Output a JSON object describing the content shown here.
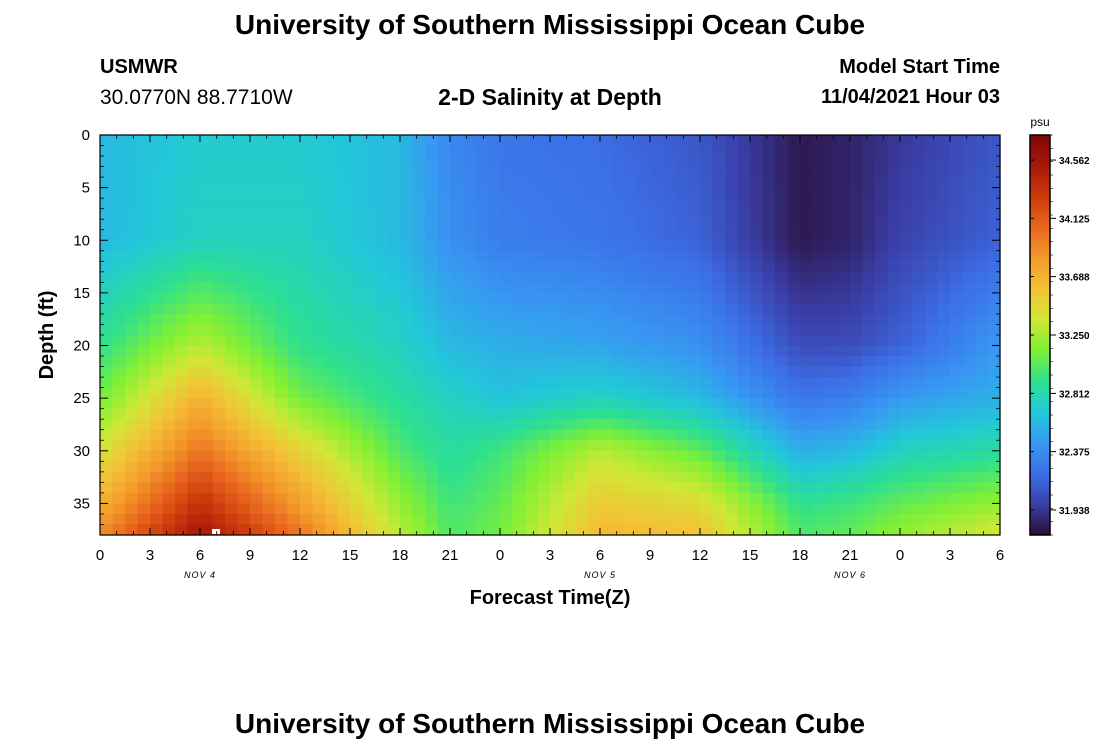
{
  "header": {
    "title": "University of Southern Mississippi Ocean Cube",
    "station": "USMWR",
    "coords": "30.0770N  88.7710W",
    "subtitle": "2-D Salinity at Depth",
    "model_start_label": "Model Start Time",
    "model_start_value": "11/04/2021 Hour 03"
  },
  "footer": {
    "title": "University of Southern Mississippi Ocean Cube"
  },
  "chart_data": {
    "type": "heatmap",
    "title": "2-D Salinity at Depth",
    "xlabel": "Forecast Time(Z)",
    "ylabel": "Depth (ft)",
    "x_tick_labels": [
      "0",
      "3",
      "6",
      "9",
      "12",
      "15",
      "18",
      "21",
      "0",
      "3",
      "6",
      "9",
      "12",
      "15",
      "18",
      "21",
      "0",
      "3",
      "6"
    ],
    "x_day_labels": [
      {
        "label": "NOV 4",
        "tick_index": 2
      },
      {
        "label": "NOV 5",
        "tick_index": 10
      },
      {
        "label": "NOV 6",
        "tick_index": 15
      }
    ],
    "x_range_hours": [
      0,
      54
    ],
    "y_ticks": [
      0,
      5,
      10,
      15,
      20,
      25,
      30,
      35
    ],
    "y_range": [
      0,
      38
    ],
    "colorbar": {
      "unit": "psu",
      "tick_labels": [
        "34.562",
        "34.125",
        "33.688",
        "33.250",
        "32.812",
        "32.375",
        "31.938"
      ],
      "vmin": 31.75,
      "vmax": 34.75,
      "colors": [
        "#2a0f3a",
        "#3a3ea6",
        "#3c6fe8",
        "#3798f2",
        "#22c8d8",
        "#2ee08e",
        "#7ff035",
        "#cfe835",
        "#f3c236",
        "#f39a2b",
        "#e8661e",
        "#cc3a0c",
        "#a8180a",
        "#7d0606"
      ]
    },
    "values": {
      "description_key": "salinity",
      "x_hours": [
        0,
        6,
        12,
        18,
        21,
        24,
        30,
        36,
        42,
        45,
        48,
        54
      ],
      "depth_ft": [
        0,
        10,
        20,
        25,
        30,
        35,
        38
      ],
      "grid": [
        [
          32.6,
          32.7,
          32.7,
          32.6,
          32.35,
          32.25,
          32.2,
          32.1,
          31.8,
          31.85,
          31.95,
          32.1
        ],
        [
          32.6,
          32.75,
          32.75,
          32.6,
          32.4,
          32.3,
          32.25,
          32.15,
          31.8,
          31.85,
          32.0,
          32.15
        ],
        [
          32.9,
          33.3,
          32.9,
          32.75,
          32.6,
          32.55,
          32.5,
          32.4,
          32.05,
          32.05,
          32.15,
          32.45
        ],
        [
          33.1,
          33.7,
          33.1,
          32.85,
          32.75,
          32.65,
          32.75,
          32.6,
          32.25,
          32.3,
          32.45,
          32.55
        ],
        [
          33.4,
          34.0,
          33.5,
          33.0,
          32.85,
          32.95,
          33.3,
          33.05,
          32.55,
          32.6,
          32.75,
          32.85
        ],
        [
          33.7,
          34.35,
          33.8,
          33.2,
          32.95,
          33.05,
          33.55,
          33.45,
          32.9,
          32.95,
          33.05,
          33.2
        ],
        [
          33.9,
          34.55,
          34.0,
          33.3,
          33.0,
          33.1,
          33.65,
          33.6,
          33.0,
          33.05,
          33.2,
          33.4
        ]
      ]
    }
  }
}
